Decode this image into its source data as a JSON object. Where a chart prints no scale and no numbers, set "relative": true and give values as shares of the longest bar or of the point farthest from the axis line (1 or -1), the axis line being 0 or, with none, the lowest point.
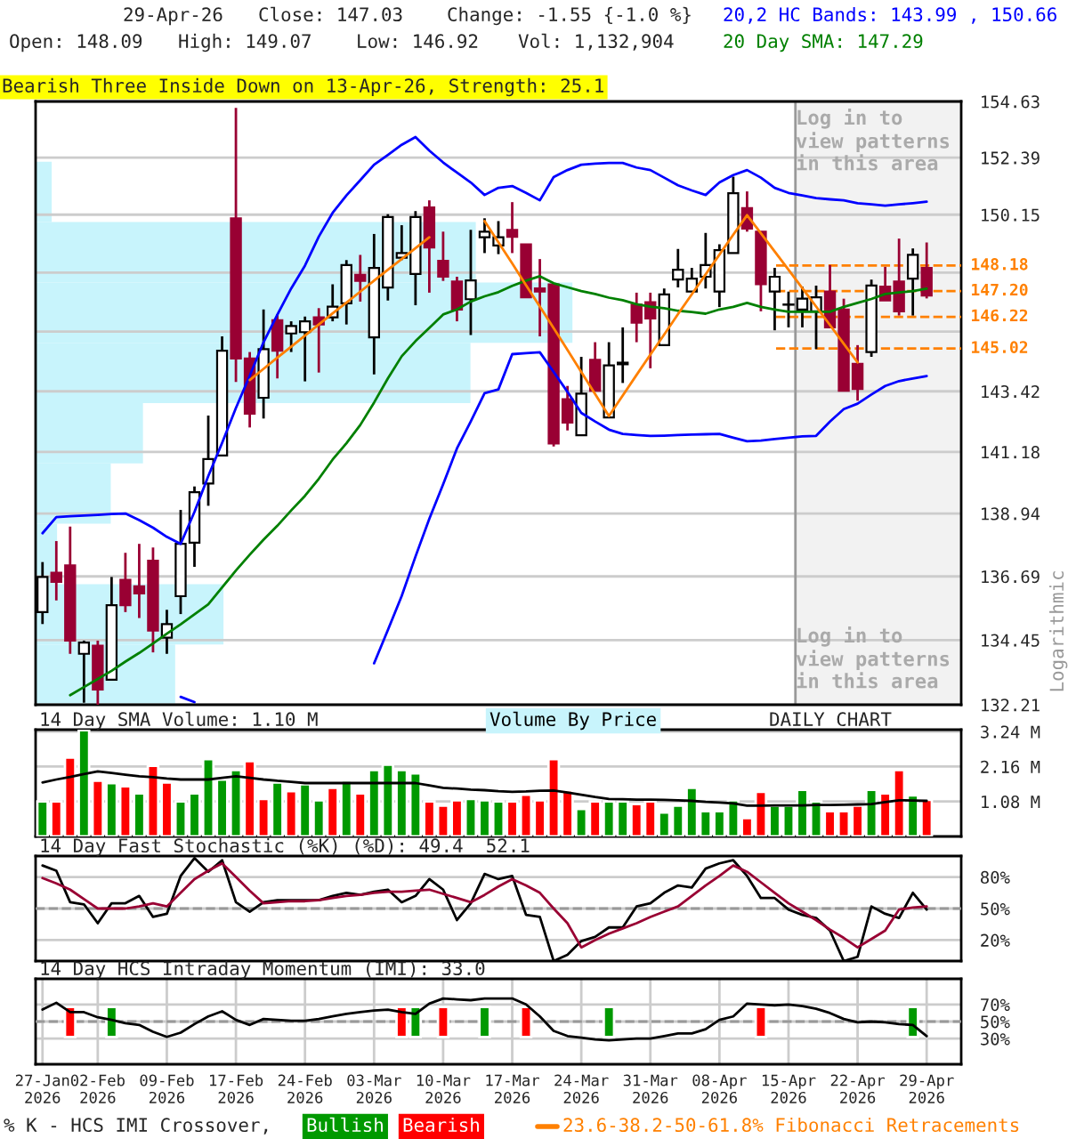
{
  "chart_data": [
    {
      "type": "candlestick",
      "ylabel": "Logarithmic",
      "categories": [
        null,
        null,
        null,
        null,
        null,
        null,
        null,
        null,
        null,
        null,
        null,
        null,
        null,
        null,
        null,
        null,
        null,
        null,
        null,
        null,
        null,
        null,
        null,
        null,
        null,
        null,
        null,
        null,
        null,
        null,
        null,
        null,
        null,
        null,
        null,
        null,
        null,
        null,
        null,
        null,
        null,
        null,
        null,
        null,
        null,
        null,
        null,
        null,
        null,
        null,
        null,
        null,
        null,
        null,
        null,
        null,
        null,
        null,
        null,
        null,
        null,
        null,
        null,
        null,
        null
      ],
      "ohlc": [
        [
          135.43,
          137.2,
          135.01,
          136.67
        ],
        [
          136.82,
          137.95,
          135.84,
          136.5
        ],
        [
          137.08,
          138.47,
          133.97,
          134.43
        ],
        [
          133.97,
          134.43,
          132.28,
          134.36
        ],
        [
          134.25,
          134.43,
          132.21,
          132.73
        ],
        [
          133.07,
          136.67,
          133.07,
          135.67
        ],
        [
          136.57,
          137.53,
          135.43,
          135.67
        ],
        [
          136.34,
          137.85,
          135.22,
          136.09
        ],
        [
          137.25,
          137.72,
          134.02,
          134.78
        ],
        [
          134.53,
          135.51,
          133.97,
          135.01
        ],
        [
          135.99,
          139.07,
          135.36,
          137.85
        ],
        [
          137.89,
          139.92,
          137.03,
          139.71
        ],
        [
          140.03,
          142.52,
          139.22,
          140.92
        ],
        [
          141.05,
          145.48,
          141.05,
          144.94
        ],
        [
          150.01,
          154.37,
          143.77,
          144.65
        ],
        [
          144.65,
          144.89,
          142.08,
          142.59
        ],
        [
          143.18,
          146.5,
          142.41,
          145.0
        ],
        [
          146.09,
          146.32,
          143.9,
          144.94
        ],
        [
          145.59,
          146.05,
          144.89,
          145.87
        ],
        [
          145.64,
          146.23,
          143.79,
          146.05
        ],
        [
          146.2,
          146.55,
          144.12,
          145.93
        ],
        [
          146.2,
          147.46,
          146.05,
          146.61
        ],
        [
          146.73,
          148.39,
          145.93,
          148.2
        ],
        [
          147.82,
          148.59,
          146.8,
          147.59
        ],
        [
          145.44,
          149.4,
          144.05,
          148.09
        ],
        [
          147.34,
          150.17,
          146.84,
          150.06
        ],
        [
          148.48,
          149.74,
          148.39,
          148.66
        ],
        [
          147.86,
          150.29,
          146.66,
          150.06
        ],
        [
          150.43,
          150.71,
          147.14,
          148.88
        ],
        [
          148.36,
          149.49,
          147.59,
          147.75
        ],
        [
          147.57,
          147.75,
          146.05,
          146.5
        ],
        [
          146.89,
          149.56,
          145.53,
          147.61
        ],
        [
          149.27,
          150.01,
          148.66,
          149.49
        ],
        [
          148.95,
          149.9,
          148.62,
          149.27
        ],
        [
          149.56,
          150.64,
          148.66,
          149.29
        ],
        [
          149.0,
          149.0,
          146.96,
          146.96
        ],
        [
          147.3,
          148.43,
          145.48,
          147.18
        ],
        [
          147.46,
          147.46,
          141.38,
          141.49
        ],
        [
          143.13,
          143.62,
          141.97,
          142.26
        ],
        [
          141.79,
          144.71,
          141.79,
          143.33
        ],
        [
          144.6,
          145.26,
          143.44,
          143.44
        ],
        [
          142.45,
          145.26,
          142.45,
          144.39
        ],
        [
          144.43,
          145.82,
          143.73,
          144.49
        ],
        [
          146.68,
          147.14,
          145.26,
          146.0
        ],
        [
          146.78,
          147.14,
          144.28,
          146.16
        ],
        [
          145.15,
          147.3,
          145.15,
          147.07
        ],
        [
          147.64,
          148.82,
          147.34,
          148.02
        ],
        [
          147.18,
          148.09,
          147.18,
          147.68
        ],
        [
          147.75,
          149.44,
          147.3,
          148.2
        ],
        [
          147.18,
          149.0,
          146.59,
          148.77
        ],
        [
          148.66,
          151.64,
          148.66,
          150.99
        ],
        [
          150.41,
          151.06,
          149.49,
          149.61
        ],
        [
          149.49,
          149.49,
          146.43,
          147.46
        ],
        [
          147.18,
          148.09,
          145.71,
          147.75
        ],
        [
          146.68,
          147.18,
          145.82,
          146.68
        ],
        [
          146.5,
          147.37,
          145.82,
          146.91
        ],
        [
          146.43,
          147.41,
          145.0,
          146.96
        ],
        [
          147.18,
          148.2,
          145.82,
          145.82
        ],
        [
          146.5,
          146.91,
          143.44,
          143.44
        ],
        [
          144.45,
          145.15,
          143.07,
          143.51
        ],
        [
          144.89,
          147.64,
          144.71,
          147.41
        ],
        [
          147.37,
          148.13,
          146.84,
          146.84
        ],
        [
          147.57,
          149.22,
          146.27,
          146.43
        ],
        [
          147.68,
          148.84,
          146.27,
          148.59
        ],
        [
          148.09,
          149.07,
          146.92,
          147.03
        ]
      ],
      "series": [
        {
          "type": "line",
          "name": "20,2 HC Bands: 143.99 , 150.66",
          "color": "#0000ff",
          "values": [
            138.23,
            138.81,
            138.84,
            138.87,
            138.89,
            138.92,
            138.94,
            138.7,
            138.43,
            138.1,
            137.85,
            139.0,
            140.3,
            141.51,
            142.8,
            144.0,
            145.26,
            146.3,
            147.3,
            148.18,
            149.3,
            150.22,
            150.9,
            151.5,
            152.11,
            152.5,
            152.9,
            153.21,
            152.67,
            152.2,
            151.8,
            151.41,
            150.92,
            151.2,
            151.27,
            151.0,
            150.71,
            151.62,
            151.9,
            152.11,
            152.15,
            152.18,
            152.18,
            152.0,
            151.9,
            151.6,
            151.3,
            151.1,
            150.92,
            151.41,
            151.7,
            151.9,
            151.6,
            151.2,
            151.0,
            150.9,
            150.8,
            150.75,
            150.71,
            150.6,
            150.55,
            150.5,
            150.55,
            150.6,
            150.66
          ]
        },
        {
          "type": "line",
          "color": "#0000ff",
          "values": [
            null,
            null,
            null,
            null,
            null,
            null,
            null,
            null,
            null,
            null,
            132.48,
            132.3,
            null,
            null,
            null,
            null,
            null,
            null,
            null,
            null,
            null,
            null,
            null,
            null,
            133.64,
            134.8,
            136.0,
            137.4,
            138.75,
            140.0,
            141.31,
            142.3,
            143.35,
            143.49,
            144.81,
            144.85,
            144.88,
            144.14,
            143.4,
            142.62,
            142.3,
            142.0,
            141.84,
            141.8,
            141.77,
            141.78,
            141.8,
            141.82,
            141.83,
            141.84,
            141.7,
            141.57,
            141.6,
            141.65,
            141.7,
            141.75,
            141.77,
            142.3,
            142.76,
            142.96,
            143.3,
            143.62,
            143.8,
            143.9,
            143.99
          ]
        },
        {
          "type": "line",
          "name": "20 Day SMA: 147.29",
          "color": "#008000",
          "values": [
            null,
            null,
            132.54,
            132.82,
            133.1,
            133.38,
            133.7,
            134.0,
            134.33,
            134.67,
            135.0,
            135.35,
            135.7,
            136.3,
            136.9,
            137.46,
            138.0,
            138.5,
            139.05,
            139.58,
            140.2,
            140.9,
            141.5,
            142.17,
            143.0,
            143.9,
            144.73,
            145.3,
            145.8,
            146.31,
            146.5,
            146.8,
            147.0,
            147.16,
            147.4,
            147.6,
            147.77,
            147.5,
            147.35,
            147.2,
            147.09,
            146.95,
            146.85,
            146.7,
            146.61,
            146.55,
            146.45,
            146.4,
            146.34,
            146.5,
            146.6,
            146.75,
            146.6,
            146.5,
            146.41,
            146.41,
            146.41,
            146.41,
            146.6,
            146.75,
            146.9,
            147.09,
            147.15,
            147.2,
            147.29
          ]
        },
        {
          "type": "line",
          "name": "23.6-38.2-50-61.8% Fibonacci Retracements",
          "color": "#ff8000",
          "values": [
            null,
            null,
            null,
            null,
            null,
            null,
            null,
            null,
            null,
            null,
            null,
            null,
            null,
            null,
            null,
            143.84,
            144.26,
            144.68,
            145.09,
            145.51,
            145.93,
            146.35,
            146.76,
            147.18,
            147.6,
            148.02,
            148.43,
            148.85,
            149.27,
            null,
            null,
            null,
            149.9,
            149.08,
            148.26,
            147.43,
            146.61,
            145.79,
            144.97,
            144.14,
            143.32,
            142.5,
            143.26,
            144.03,
            144.79,
            145.55,
            146.32,
            147.08,
            147.84,
            148.6,
            149.37,
            150.13,
            149.43,
            148.72,
            148.02,
            147.31,
            146.61,
            145.91,
            145.2,
            144.5,
            null,
            null,
            null,
            null,
            null
          ]
        }
      ],
      "ref_lines": [
        {
          "axis": "y",
          "value": 148.18,
          "label": "148.18",
          "color": "#ff8000",
          "line_style": "dashed"
        },
        {
          "axis": "y",
          "value": 147.2,
          "label": "147.20",
          "color": "#ff8000",
          "line_style": "dashed"
        },
        {
          "axis": "y",
          "value": 146.22,
          "label": "146.22",
          "color": "#ff8000",
          "line_style": "dashed"
        },
        {
          "axis": "y",
          "value": 145.02,
          "label": "145.02",
          "color": "#ff8000",
          "line_style": "dashed"
        }
      ],
      "annotations": [
        "29-Apr-26",
        "Close: 147.03",
        "Change: -1.55 {-1.0 %}",
        "Open: 148.09",
        "High: 149.07",
        "Low: 146.92",
        "Vol: 1,132,904",
        "Bearish Three Inside Down on 13-Apr-26, Strength: 25.1",
        "Log in to\nview patterns\nin this area",
        "Log in to\nview patterns\nin this area"
      ],
      "log": true,
      "ylim": [
        132.21,
        154.63
      ],
      "yticks": [
        154.63,
        152.39,
        150.15,
        {
          "value": 147.91,
          "label": null
        },
        {
          "value": 145.66,
          "label": null
        },
        143.42,
        141.18,
        138.94,
        136.69,
        134.45,
        132.21
      ],
      "tick_labels": "y",
      "grid": true
    },
    {
      "type": "bar",
      "orientation": "horizontal",
      "relative": true,
      "categories": [
        null,
        null,
        null,
        null,
        null,
        null,
        null,
        null,
        null
      ],
      "series": [
        {
          "name": "Volume By Price",
          "color": "#c8f4fc",
          "values": [
            0.03,
            0.82,
            1,
            0.81,
            0.2,
            0.14,
            0.04,
            0.35,
            0.26
          ]
        }
      ]
    },
    {
      "type": "bar",
      "title": "14 Day SMA Volume: 1.10 M",
      "categories": [
        null,
        null,
        null,
        null,
        null,
        null,
        null,
        null,
        null,
        null,
        null,
        null,
        null,
        null,
        null,
        null,
        null,
        null,
        null,
        null,
        null,
        null,
        null,
        null,
        null,
        null,
        null,
        null,
        null,
        null,
        null,
        null,
        null,
        null,
        null,
        null,
        null,
        null,
        null,
        null,
        null,
        null,
        null,
        null,
        null,
        null,
        null,
        null,
        null,
        null,
        null,
        null,
        null,
        null,
        null,
        null,
        null,
        null,
        null,
        null,
        null,
        null,
        null,
        null,
        null
      ],
      "values": [
        1.08,
        1.08,
        2.44,
        3.28,
        1.72,
        1.65,
        1.55,
        1.33,
        2.18,
        1.67,
        1.08,
        1.33,
        2.39,
        1.76,
        2.05,
        2.33,
        1.16,
        1.67,
        1.4,
        1.61,
        1.12,
        1.5,
        1.72,
        1.33,
        2.05,
        2.22,
        2.05,
        1.95,
        1.08,
        0.95,
        1.12,
        1.16,
        1.12,
        1.08,
        1.08,
        1.29,
        1.12,
        2.39,
        1.42,
        0.85,
        1.08,
        1.08,
        1.08,
        1.0,
        1.08,
        0.74,
        0.95,
        1.5,
        0.78,
        0.78,
        1.12,
        0.57,
        1.38,
        0.95,
        0.95,
        1.44,
        1.08,
        0.78,
        0.78,
        0.95,
        1.44,
        1.33,
        2.05,
        1.27,
        1.13
      ],
      "colors": [
        "#009900",
        "#ff0000",
        "#ff0000",
        "#009900",
        "#ff0000",
        "#009900",
        "#ff0000",
        "#009900",
        "#ff0000",
        "#ff0000",
        "#009900",
        "#009900",
        "#009900",
        "#009900",
        "#009900",
        "#ff0000",
        "#ff0000",
        "#009900",
        "#ff0000",
        "#009900",
        "#009900",
        "#ff0000",
        "#009900",
        "#ff0000",
        "#009900",
        "#009900",
        "#009900",
        "#009900",
        "#ff0000",
        "#ff0000",
        "#ff0000",
        "#009900",
        "#009900",
        "#009900",
        "#ff0000",
        "#ff0000",
        "#ff0000",
        "#ff0000",
        "#ff0000",
        "#009900",
        "#ff0000",
        "#009900",
        "#009900",
        "#ff0000",
        "#ff0000",
        "#009900",
        "#009900",
        "#009900",
        "#009900",
        "#009900",
        "#009900",
        "#ff0000",
        "#ff0000",
        "#009900",
        "#009900",
        "#009900",
        "#009900",
        "#ff0000",
        "#ff0000",
        "#ff0000",
        "#009900",
        "#ff0000",
        "#ff0000",
        "#009900",
        "#ff0000"
      ],
      "series": [
        {
          "type": "line",
          "color": "#000000",
          "values": [
            1.67,
            1.76,
            1.84,
            1.93,
            2.01,
            1.96,
            1.91,
            1.86,
            1.83,
            1.79,
            1.76,
            1.76,
            1.76,
            1.81,
            1.86,
            1.81,
            1.76,
            1.72,
            1.69,
            1.65,
            1.65,
            1.65,
            1.65,
            1.65,
            1.65,
            1.65,
            1.65,
            1.65,
            1.58,
            1.5,
            1.48,
            1.45,
            1.43,
            1.4,
            1.38,
            1.39,
            1.41,
            1.42,
            1.36,
            1.29,
            1.22,
            1.16,
            1.15,
            1.14,
            1.14,
            1.13,
            1.12,
            1.1,
            1.07,
            1.05,
            1.02,
            0.95,
            0.95,
            0.96,
            0.96,
            0.96,
            0.97,
            0.97,
            0.98,
            0.99,
            1.0,
            1.06,
            1.12,
            1.11,
            1.1
          ]
        }
      ],
      "annotations": [
        "DAILY CHART"
      ],
      "ylim": [
        0,
        3.3
      ],
      "yticks": [
        {
          "value": 1.08,
          "label": "1.08 M"
        },
        {
          "value": 2.16,
          "label": "2.16 M"
        },
        {
          "value": 3.24,
          "label": "3.24 M"
        }
      ],
      "tick_labels": "y",
      "grid": true
    },
    {
      "type": "line",
      "title": "14 Day Fast Stochastic (%K) (%D): 49.4  52.1",
      "categories": [
        null,
        null,
        null,
        null,
        null,
        null,
        null,
        null,
        null,
        null,
        null,
        null,
        null,
        null,
        null,
        null,
        null,
        null,
        null,
        null,
        null,
        null,
        null,
        null,
        null,
        null,
        null,
        null,
        null,
        null,
        null,
        null,
        null,
        null,
        null,
        null,
        null,
        null,
        null,
        null,
        null,
        null,
        null,
        null,
        null,
        null,
        null,
        null,
        null,
        null,
        null,
        null,
        null,
        null,
        null,
        null,
        null,
        null,
        null,
        null,
        null,
        null,
        null,
        null,
        null
      ],
      "series": [
        {
          "color": "#000000",
          "values": [
            91,
            86,
            56,
            54,
            36,
            55,
            55,
            62,
            42,
            45,
            81,
            98,
            85,
            96,
            56,
            47,
            56,
            58,
            58,
            58,
            58,
            62,
            65,
            63,
            66,
            68,
            56,
            62,
            78,
            68,
            39,
            55,
            83,
            78,
            81,
            44,
            42,
            0,
            6,
            19,
            23,
            32,
            32,
            52,
            55,
            65,
            72,
            70,
            88,
            93,
            96,
            81,
            60,
            60,
            49,
            44,
            41,
            29,
            0,
            4,
            52,
            45,
            41,
            65,
            49
          ]
        },
        {
          "color": "#990033",
          "values": [
            79,
            74,
            68,
            59,
            50,
            50,
            50,
            52,
            55,
            52,
            65,
            78,
            86,
            93,
            80,
            67,
            55,
            56,
            57,
            57,
            58,
            60,
            62,
            63,
            65,
            66,
            66,
            67,
            68,
            64,
            60,
            56,
            63,
            71,
            78,
            72,
            65,
            50,
            36,
            13,
            20,
            26,
            31,
            36,
            42,
            47,
            52,
            62,
            72,
            81,
            91,
            85,
            75,
            65,
            55,
            47,
            39,
            30,
            22,
            13,
            21,
            29,
            49,
            51,
            52
          ]
        }
      ],
      "ref_lines": [
        {
          "axis": "y",
          "value": 50,
          "color": "#999999",
          "line_style": "dashed"
        }
      ],
      "ylim": [
        0,
        100
      ],
      "yticks": [
        {
          "value": 20,
          "label": "20%"
        },
        {
          "value": 50,
          "label": "50%"
        },
        {
          "value": 80,
          "label": "80%"
        }
      ],
      "tick_labels": "y",
      "grid": true
    },
    {
      "type": "line",
      "title": "14 Day HCS Intraday Momentum (IMI): 33.0",
      "categories": [
        "27-Jan\n2026",
        null,
        null,
        null,
        "02-Feb\n2026",
        null,
        null,
        null,
        null,
        "09-Feb\n2026",
        null,
        null,
        null,
        null,
        "17-Feb\n2026",
        null,
        null,
        null,
        null,
        "24-Feb\n2026",
        null,
        null,
        null,
        null,
        "03-Mar\n2026",
        null,
        null,
        null,
        null,
        "10-Mar\n2026",
        null,
        null,
        null,
        null,
        "17-Mar\n2026",
        null,
        null,
        null,
        null,
        "24-Mar\n2026",
        null,
        null,
        null,
        null,
        "31-Mar\n2026",
        null,
        null,
        null,
        null,
        "08-Apr\n2026",
        null,
        null,
        null,
        null,
        "15-Apr\n2026",
        null,
        null,
        null,
        null,
        "22-Apr\n2026",
        null,
        null,
        null,
        null,
        "29-Apr\n2026"
      ],
      "series": [
        {
          "color": "#000000",
          "values": [
            64,
            72,
            61,
            61,
            55,
            52,
            48,
            46,
            38,
            32,
            37,
            47,
            56,
            62,
            52,
            46,
            53,
            52,
            51,
            51,
            53,
            56,
            59,
            61,
            63,
            64,
            61,
            59,
            71,
            77,
            76,
            75,
            77,
            77,
            77,
            70,
            56,
            39,
            33,
            31,
            29,
            28,
            29,
            30,
            30,
            33,
            36,
            36,
            41,
            52,
            56,
            71,
            70,
            69,
            70,
            68,
            65,
            60,
            53,
            49,
            50,
            49,
            47,
            46,
            33
          ]
        },
        {
          "type": "bar",
          "name": "Bullish",
          "color": "#009900",
          "values": [
            null,
            null,
            null,
            null,
            null,
            35,
            null,
            null,
            null,
            null,
            null,
            null,
            null,
            null,
            null,
            null,
            null,
            null,
            null,
            null,
            null,
            null,
            null,
            null,
            null,
            null,
            null,
            35,
            null,
            null,
            null,
            null,
            35,
            null,
            null,
            null,
            null,
            null,
            null,
            null,
            null,
            35,
            null,
            null,
            null,
            null,
            null,
            null,
            null,
            null,
            null,
            null,
            null,
            null,
            null,
            null,
            null,
            null,
            null,
            null,
            null,
            null,
            null,
            35,
            null
          ],
          "base": [
            null,
            null,
            null,
            null,
            null,
            32,
            null,
            null,
            null,
            null,
            null,
            null,
            null,
            null,
            null,
            null,
            null,
            null,
            null,
            null,
            null,
            null,
            null,
            null,
            null,
            null,
            null,
            32,
            null,
            null,
            null,
            null,
            32,
            null,
            null,
            null,
            null,
            null,
            null,
            null,
            null,
            32,
            null,
            null,
            null,
            null,
            null,
            null,
            null,
            null,
            null,
            null,
            null,
            null,
            null,
            null,
            null,
            null,
            null,
            null,
            null,
            null,
            null,
            32,
            null
          ]
        },
        {
          "type": "bar",
          "name": "Bearish",
          "color": "#ff0000",
          "values": [
            null,
            null,
            35,
            null,
            null,
            null,
            null,
            null,
            null,
            null,
            null,
            null,
            null,
            null,
            null,
            null,
            null,
            null,
            null,
            null,
            null,
            null,
            null,
            null,
            null,
            null,
            35,
            null,
            null,
            35,
            null,
            null,
            null,
            null,
            null,
            35,
            null,
            null,
            null,
            null,
            null,
            null,
            null,
            null,
            null,
            null,
            null,
            null,
            null,
            null,
            null,
            null,
            35,
            null,
            null,
            null,
            null,
            null,
            null,
            null,
            null,
            null,
            null,
            null,
            null
          ],
          "base": [
            null,
            null,
            32,
            null,
            null,
            null,
            null,
            null,
            null,
            null,
            null,
            null,
            null,
            null,
            null,
            null,
            null,
            null,
            null,
            null,
            null,
            null,
            null,
            null,
            null,
            null,
            32,
            null,
            null,
            32,
            null,
            null,
            null,
            null,
            null,
            32,
            null,
            null,
            null,
            null,
            null,
            null,
            null,
            null,
            null,
            null,
            null,
            null,
            null,
            null,
            null,
            null,
            32,
            null,
            null,
            null,
            null,
            null,
            null,
            null,
            null,
            null,
            null,
            null,
            null
          ]
        }
      ],
      "ref_lines": [
        {
          "axis": "y",
          "value": 50,
          "color": "#999999",
          "line_style": "dashed"
        }
      ],
      "annotations": [
        "% K - HCS IMI Crossover,"
      ],
      "ylim": [
        0,
        100
      ],
      "yticks": [
        {
          "value": 30,
          "label": "30%"
        },
        {
          "value": 50,
          "label": "50%"
        },
        {
          "value": 70,
          "label": "70%"
        }
      ],
      "grid": true
    }
  ]
}
